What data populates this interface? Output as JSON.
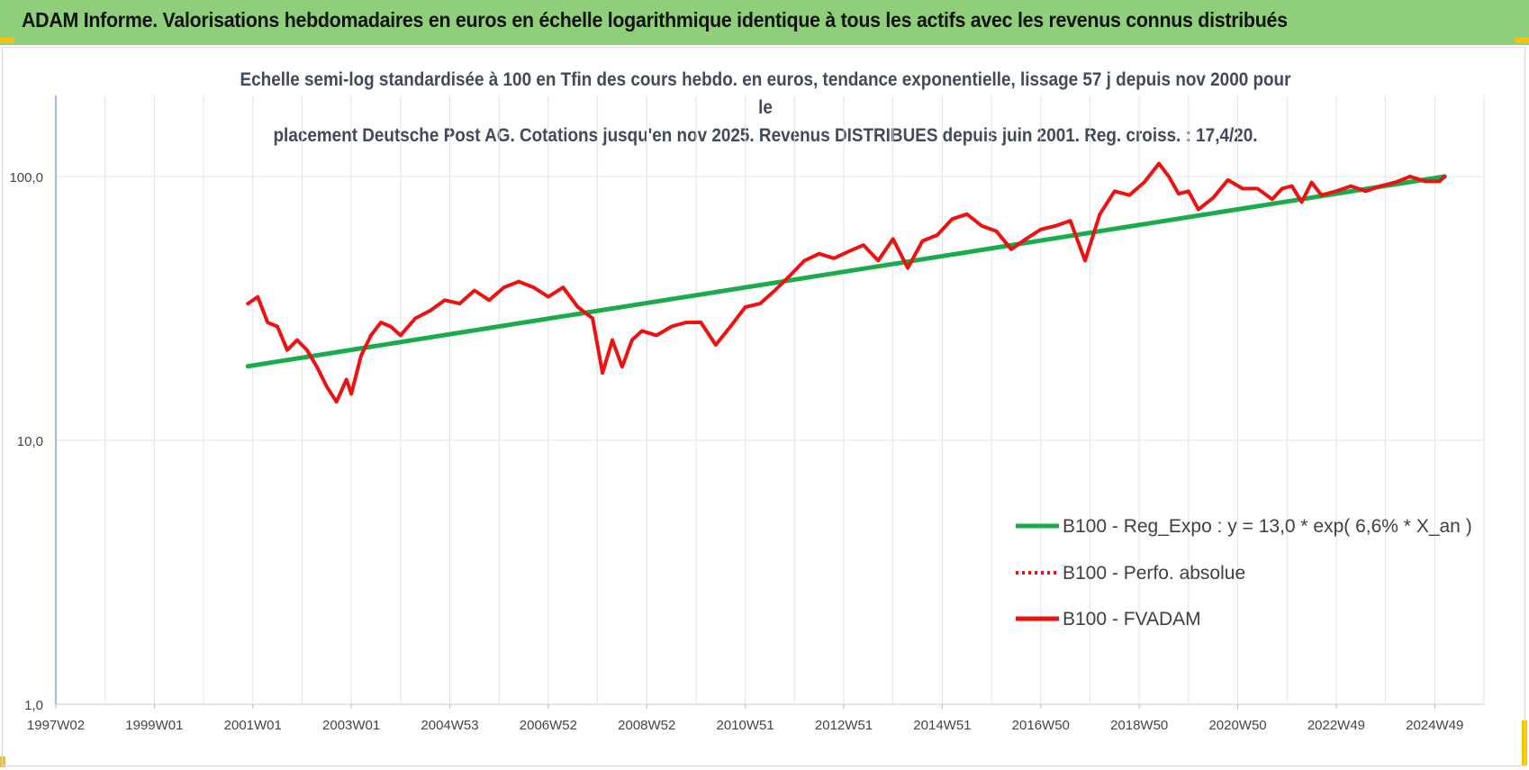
{
  "banner": {
    "title": "ADAM Informe. Valorisations hebdomadaires en euros en échelle logarithmique identique à tous les actifs avec les revenus connus distribués"
  },
  "colors": {
    "banner_bg": "#8fcf7b",
    "accent": "#f4c20d",
    "trend": "#1aab4b",
    "price": "#ee1111",
    "grid": "#e3e3e3"
  },
  "chart_data": {
    "type": "line",
    "title_line1": "Echelle semi-log standardisée à 100 en Tfin des cours hebdo. en euros, tendance exponentielle, lissage 57 j depuis nov 2000 pour le",
    "title_line2": "placement Deutsche Post AG. Cotations jusqu'en nov 2025. Revenus DISTRIBUES depuis juin 2001. Reg. croiss. : 17,4/20.",
    "y_scale": "log",
    "ylim": [
      1,
      200
    ],
    "y_ticks": [
      {
        "value": 1,
        "label": "1,0"
      },
      {
        "value": 10,
        "label": "10,0"
      },
      {
        "value": 100,
        "label": "100,0"
      }
    ],
    "xlim": [
      1997.0,
      2026.0
    ],
    "x_ticks": [
      {
        "x": 1997.0,
        "label": "1997W02"
      },
      {
        "x": 1999.0,
        "label": "1999W01"
      },
      {
        "x": 2001.0,
        "label": "2001W01"
      },
      {
        "x": 2003.0,
        "label": "2003W01"
      },
      {
        "x": 2005.0,
        "label": "2004W53"
      },
      {
        "x": 2007.0,
        "label": "2006W52"
      },
      {
        "x": 2009.0,
        "label": "2008W52"
      },
      {
        "x": 2011.0,
        "label": "2010W51"
      },
      {
        "x": 2013.0,
        "label": "2012W51"
      },
      {
        "x": 2015.0,
        "label": "2014W51"
      },
      {
        "x": 2017.0,
        "label": "2016W50"
      },
      {
        "x": 2019.0,
        "label": "2018W50"
      },
      {
        "x": 2021.0,
        "label": "2020W50"
      },
      {
        "x": 2023.0,
        "label": "2022W49"
      },
      {
        "x": 2025.0,
        "label": "2024W49"
      }
    ],
    "grid": true,
    "legend_position": "bottom-right",
    "series": [
      {
        "name": "B100 - Reg_Expo : y = 13,0 * exp( 6,6% *  X_an )",
        "style": "solid-green",
        "x": [
          2000.9,
          2025.2
        ],
        "y": [
          19.1,
          100.0
        ]
      },
      {
        "name": "B100 - Perfo. absolue",
        "style": "dotted-red",
        "x": [],
        "y": []
      },
      {
        "name": "B100 - FVADAM",
        "style": "solid-red",
        "x": [
          2000.9,
          2001.1,
          2001.3,
          2001.5,
          2001.7,
          2001.9,
          2002.1,
          2002.3,
          2002.5,
          2002.7,
          2002.9,
          2003.0,
          2003.2,
          2003.4,
          2003.6,
          2003.8,
          2004.0,
          2004.3,
          2004.6,
          2004.9,
          2005.2,
          2005.5,
          2005.8,
          2006.1,
          2006.4,
          2006.7,
          2007.0,
          2007.3,
          2007.6,
          2007.9,
          2008.1,
          2008.3,
          2008.5,
          2008.7,
          2008.9,
          2009.2,
          2009.5,
          2009.8,
          2010.1,
          2010.4,
          2010.7,
          2011.0,
          2011.3,
          2011.6,
          2011.9,
          2012.2,
          2012.5,
          2012.8,
          2013.1,
          2013.4,
          2013.7,
          2014.0,
          2014.3,
          2014.6,
          2014.9,
          2015.2,
          2015.5,
          2015.8,
          2016.1,
          2016.4,
          2016.7,
          2017.0,
          2017.3,
          2017.6,
          2017.9,
          2018.2,
          2018.5,
          2018.8,
          2019.1,
          2019.4,
          2019.6,
          2019.8,
          2020.0,
          2020.2,
          2020.5,
          2020.8,
          2021.1,
          2021.4,
          2021.7,
          2021.9,
          2022.1,
          2022.3,
          2022.5,
          2022.7,
          2023.0,
          2023.3,
          2023.6,
          2023.9,
          2024.2,
          2024.5,
          2024.8,
          2025.1,
          2025.2
        ],
        "y": [
          33,
          35,
          28,
          27,
          22,
          24,
          22,
          19,
          16,
          14,
          17,
          15,
          21,
          25,
          28,
          27,
          25,
          29,
          31,
          34,
          33,
          37,
          34,
          38,
          40,
          38,
          35,
          38,
          32,
          29,
          18,
          24,
          19,
          24,
          26,
          25,
          27,
          28,
          28,
          23,
          27,
          32,
          33,
          37,
          42,
          48,
          51,
          49,
          52,
          55,
          48,
          58,
          45,
          57,
          60,
          69,
          72,
          65,
          62,
          53,
          58,
          63,
          65,
          68,
          48,
          72,
          88,
          85,
          95,
          112,
          100,
          86,
          88,
          75,
          83,
          97,
          90,
          90,
          82,
          90,
          92,
          80,
          95,
          85,
          88,
          92,
          88,
          92,
          95,
          100,
          96,
          96,
          100
        ]
      }
    ]
  }
}
